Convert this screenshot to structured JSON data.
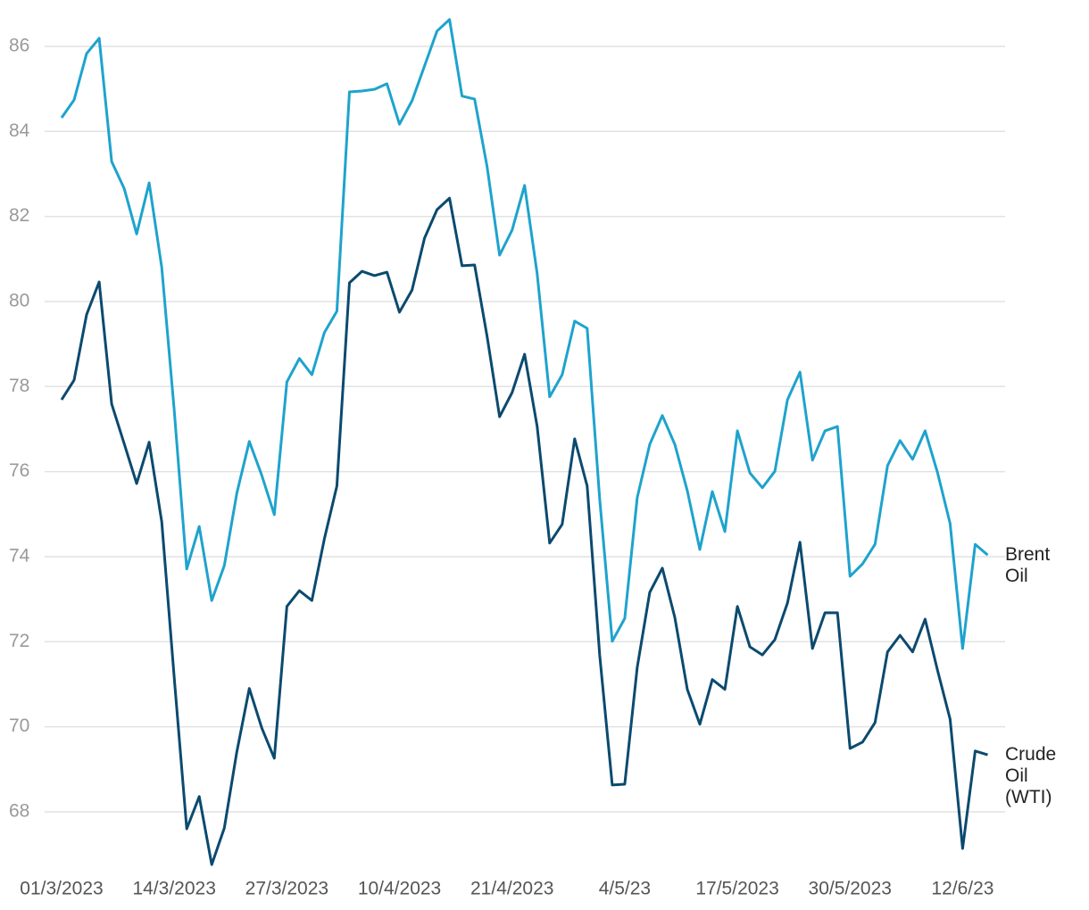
{
  "chart_data": {
    "type": "line",
    "categories": [
      "01/3/2023",
      null,
      null,
      null,
      null,
      null,
      null,
      null,
      null,
      "14/3/2023",
      null,
      null,
      null,
      null,
      null,
      null,
      null,
      null,
      "27/3/2023",
      null,
      null,
      null,
      null,
      null,
      null,
      null,
      null,
      "10/4/2023",
      null,
      null,
      null,
      null,
      null,
      null,
      null,
      null,
      "21/4/2023",
      null,
      null,
      null,
      null,
      null,
      null,
      null,
      null,
      "4/5/23",
      null,
      null,
      null,
      null,
      null,
      null,
      null,
      null,
      "17/5/2023",
      null,
      null,
      null,
      null,
      null,
      null,
      null,
      null,
      "30/5/2023",
      null,
      null,
      null,
      null,
      null,
      null,
      null,
      null,
      "12/6/23",
      null,
      null
    ],
    "series": [
      {
        "name": "Brent Oil",
        "color": "#1ea3cd",
        "values": [
          84.32,
          84.74,
          85.83,
          86.19,
          83.29,
          82.66,
          81.59,
          82.79,
          80.8,
          77.44,
          73.71,
          74.71,
          72.97,
          73.79,
          75.49,
          76.71,
          75.91,
          74.99,
          78.11,
          78.66,
          78.28,
          79.27,
          79.77,
          84.93,
          84.95,
          84.99,
          85.12,
          84.17,
          84.72,
          85.54,
          86.36,
          86.63,
          84.83,
          84.76,
          83.17,
          81.09,
          81.68,
          82.73,
          80.65,
          77.76,
          78.28,
          79.54,
          79.37,
          75.34,
          72.01,
          72.55,
          75.39,
          76.64,
          77.32,
          76.64,
          75.55,
          74.17,
          75.53,
          74.59,
          76.96,
          75.97,
          75.62,
          76.01,
          77.69,
          78.34,
          76.27,
          76.96,
          77.06,
          73.54,
          73.83,
          74.29,
          76.14,
          76.73,
          76.29,
          76.96,
          75.97,
          74.78,
          71.84,
          74.29,
          74.04
        ]
      },
      {
        "name": "Crude Oil (WTI)",
        "color": "#0b4a6f",
        "values": [
          77.69,
          78.15,
          79.69,
          80.46,
          77.59,
          76.66,
          75.72,
          76.69,
          74.82,
          71.15,
          67.6,
          68.36,
          66.76,
          67.62,
          69.41,
          70.9,
          69.97,
          69.26,
          72.83,
          73.2,
          72.97,
          74.42,
          75.66,
          80.44,
          80.71,
          80.61,
          80.69,
          79.75,
          80.27,
          81.49,
          82.16,
          82.43,
          80.84,
          80.86,
          79.18,
          77.29,
          77.86,
          78.76,
          77.06,
          74.32,
          74.76,
          76.77,
          75.66,
          71.67,
          68.63,
          68.65,
          71.4,
          73.16,
          73.73,
          72.57,
          70.88,
          70.06,
          71.11,
          70.88,
          72.83,
          71.88,
          71.69,
          72.05,
          72.91,
          74.34,
          71.84,
          72.68,
          72.68,
          69.49,
          69.64,
          70.1,
          71.76,
          72.15,
          71.76,
          72.53,
          71.32,
          70.18,
          67.14,
          69.43,
          69.34
        ]
      }
    ],
    "ylim": [
      66.6,
      86.7
    ],
    "yticks": [
      68,
      70,
      72,
      74,
      76,
      78,
      80,
      82,
      84,
      86
    ],
    "grid": true
  }
}
